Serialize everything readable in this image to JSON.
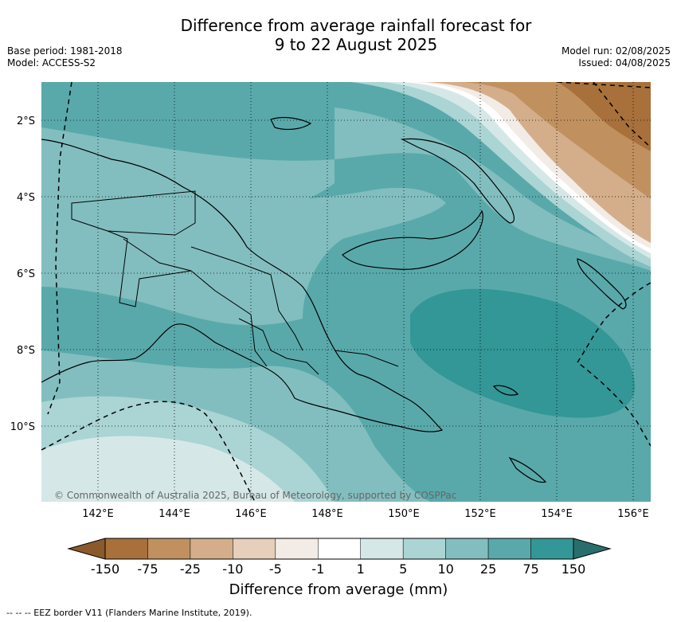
{
  "header": {
    "title_line1": "Difference from average rainfall forecast for",
    "title_line2": "9 to 22 August 2025",
    "base_period": "Base period: 1981-2018",
    "model": "Model: ACCESS-S2",
    "model_run": "Model run: 02/08/2025",
    "issued": "Issued: 04/08/2025"
  },
  "map": {
    "lat_labels": [
      "2°S",
      "4°S",
      "6°S",
      "8°S",
      "10°S"
    ],
    "lon_labels": [
      "142°E",
      "144°E",
      "146°E",
      "148°E",
      "150°E",
      "152°E",
      "154°E",
      "156°E"
    ],
    "copyright": "© Commonwealth of Australia 2025, Bureau of Meteorology, supported by COSPPac"
  },
  "colorbar": {
    "title": "Difference from average (mm)",
    "labels": [
      "-150",
      "-75",
      "-25",
      "-10",
      "-5",
      "-1",
      "1",
      "5",
      "10",
      "25",
      "75",
      "150"
    ],
    "colors": [
      "#a8703a",
      "#c0915f",
      "#d4ae8a",
      "#e6cfbb",
      "#f2ebe6",
      "#ffffff",
      "#d5e8e7",
      "#abd4d4",
      "#82bebf",
      "#59a9ab",
      "#329796",
      "#286e6c"
    ]
  },
  "footer": {
    "legend": "-- -- -- EEZ border V11 (Flanders Marine Institute, 2019)."
  }
}
